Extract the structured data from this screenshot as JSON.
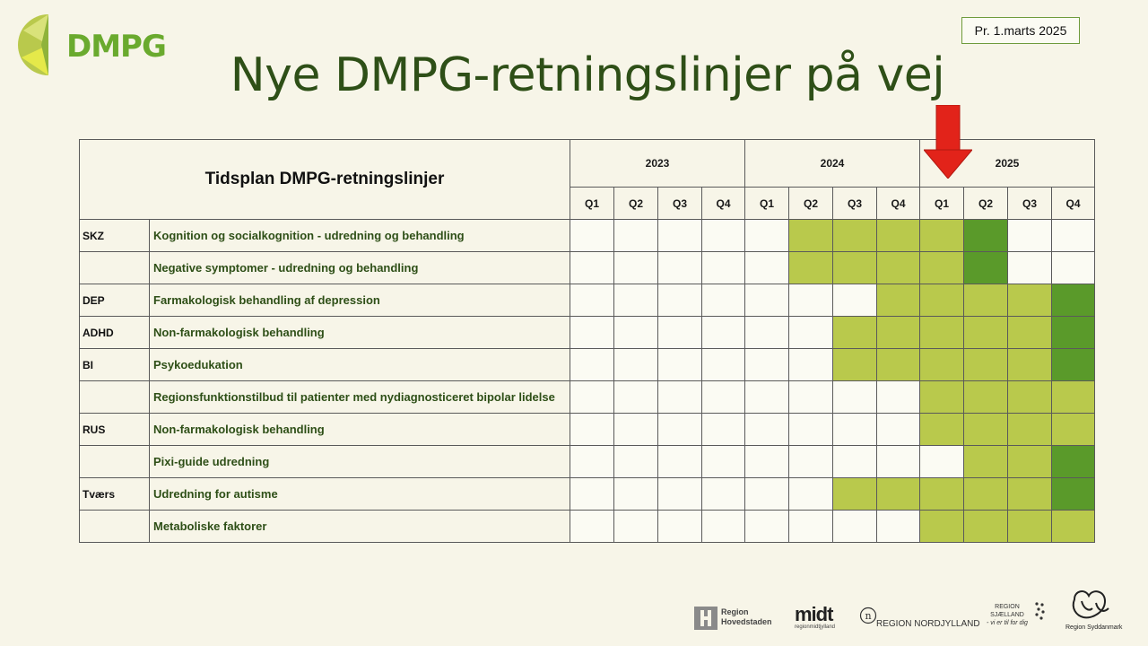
{
  "logo": {
    "text": "DMPG"
  },
  "date_label": "Pr. 1.marts 2025",
  "title": "Nye DMPG-retningslinjer på vej",
  "table": {
    "header": "Tidsplan DMPG-retningslinjer",
    "years": [
      "2023",
      "2024",
      "2025"
    ],
    "quarters": [
      "Q1",
      "Q2",
      "Q3",
      "Q4",
      "Q1",
      "Q2",
      "Q3",
      "Q4",
      "Q1",
      "Q2",
      "Q3",
      "Q4"
    ],
    "legend_status_colors": {
      "planned": "#b9c94c",
      "completed": "#5a9a2a",
      "empty": "#fbfbf3"
    },
    "rows": [
      {
        "category": "SKZ",
        "guideline": "Kognition og socialkognition - udredning og behandling",
        "cells": [
          0,
          0,
          0,
          0,
          0,
          1,
          1,
          1,
          1,
          2,
          0,
          0
        ]
      },
      {
        "category": "",
        "guideline": "Negative symptomer - udredning og behandling",
        "cells": [
          0,
          0,
          0,
          0,
          0,
          1,
          1,
          1,
          1,
          2,
          0,
          0
        ]
      },
      {
        "category": "DEP",
        "guideline": "Farmakologisk behandling af depression",
        "cells": [
          0,
          0,
          0,
          0,
          0,
          0,
          0,
          1,
          1,
          1,
          1,
          2
        ]
      },
      {
        "category": "ADHD",
        "guideline": "Non-farmakologisk behandling",
        "cells": [
          0,
          0,
          0,
          0,
          0,
          0,
          1,
          1,
          1,
          1,
          1,
          2
        ]
      },
      {
        "category": "BI",
        "guideline": "Psykoedukation",
        "cells": [
          0,
          0,
          0,
          0,
          0,
          0,
          1,
          1,
          1,
          1,
          1,
          2
        ]
      },
      {
        "category": "",
        "guideline": "Regionsfunktionstilbud til patienter med nydiagnosticeret bipolar lidelse",
        "cells": [
          0,
          0,
          0,
          0,
          0,
          0,
          0,
          0,
          1,
          1,
          1,
          1
        ]
      },
      {
        "category": "RUS",
        "guideline": "Non-farmakologisk behandling",
        "cells": [
          0,
          0,
          0,
          0,
          0,
          0,
          0,
          0,
          1,
          1,
          1,
          1
        ]
      },
      {
        "category": "",
        "guideline": "Pixi-guide udredning",
        "cells": [
          0,
          0,
          0,
          0,
          0,
          0,
          0,
          0,
          0,
          1,
          1,
          2
        ]
      },
      {
        "category": "Tværs",
        "guideline": "Udredning for autisme",
        "cells": [
          0,
          0,
          0,
          0,
          0,
          0,
          1,
          1,
          1,
          1,
          1,
          2
        ]
      },
      {
        "category": "",
        "guideline": "Metaboliske faktorer",
        "cells": [
          0,
          0,
          0,
          0,
          0,
          0,
          0,
          0,
          1,
          1,
          1,
          1
        ]
      }
    ]
  },
  "current_marker": {
    "icon": "down-arrow-icon",
    "color": "#e2231a",
    "year": "2025",
    "quarter": "Q1"
  },
  "footer": {
    "hovedstaden": [
      "Region",
      "Hovedstaden"
    ],
    "midt": [
      "midt",
      "regionmidtjylland"
    ],
    "nordjylland": "REGION NORDJYLLAND",
    "sjaelland": [
      "REGION",
      "SJÆLLAND",
      "- vi er til for dig"
    ],
    "syddanmark": "Region Syddanmark"
  }
}
